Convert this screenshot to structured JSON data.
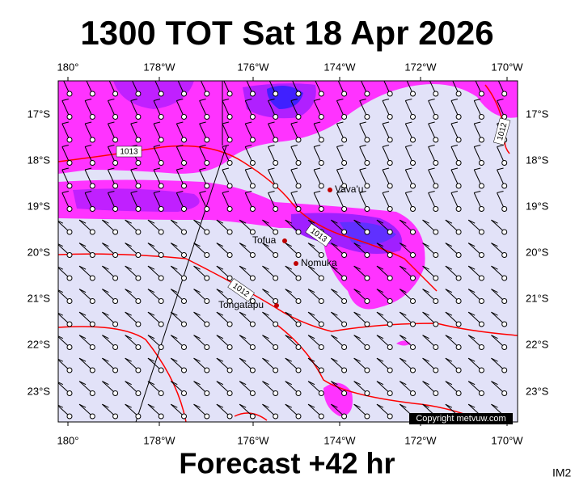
{
  "title": "1300 TOT Sat 18 Apr 2026",
  "longitude_labels": [
    "180°",
    "178°W",
    "176°W",
    "174°W",
    "172°W",
    "170°W"
  ],
  "latitude_labels": [
    "17°S",
    "18°S",
    "19°S",
    "20°S",
    "21°S",
    "22°S",
    "23°S"
  ],
  "places": [
    {
      "label": "Vava'u"
    },
    {
      "label": "Tofua"
    },
    {
      "label": "Nomuka"
    },
    {
      "label": "Tongatapu"
    }
  ],
  "isobar_labels": [
    "1013",
    "1013",
    "1012",
    "1012"
  ],
  "copyright": "Copyright metvuw.com",
  "footer": "Forecast +42 hr",
  "product": "IM2"
}
